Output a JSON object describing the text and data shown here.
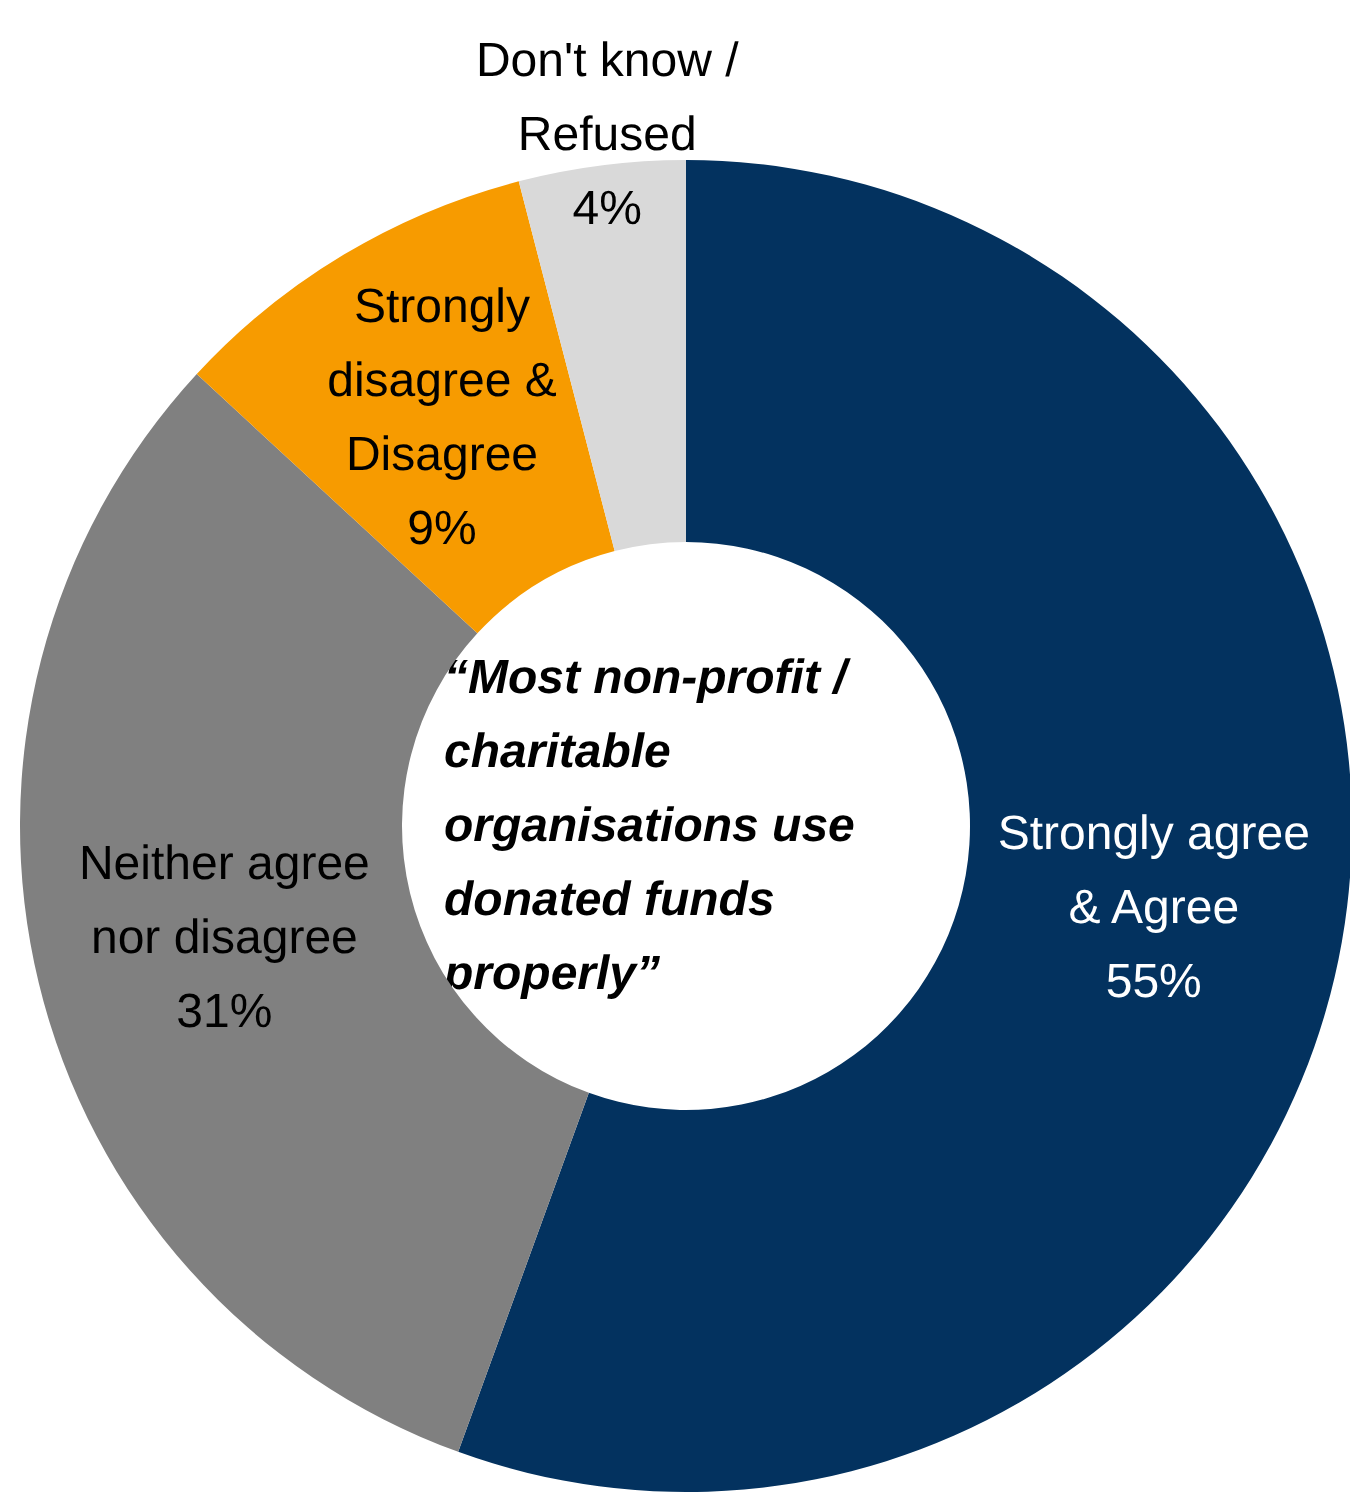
{
  "chart_data": {
    "type": "donut",
    "title": "“Most non-profit / charitable organisations use donated funds properly”",
    "categories": [
      "Strongly agree & Agree",
      "Neither agree nor disagree",
      "Strongly disagree & Disagree",
      "Don't know / Refused"
    ],
    "values": [
      55,
      31,
      9,
      4
    ],
    "colors": [
      "#03325f",
      "#808080",
      "#f79b00",
      "#d9d9d9"
    ],
    "value_labels": [
      "55%",
      "31%",
      "9%",
      "4%"
    ]
  }
}
